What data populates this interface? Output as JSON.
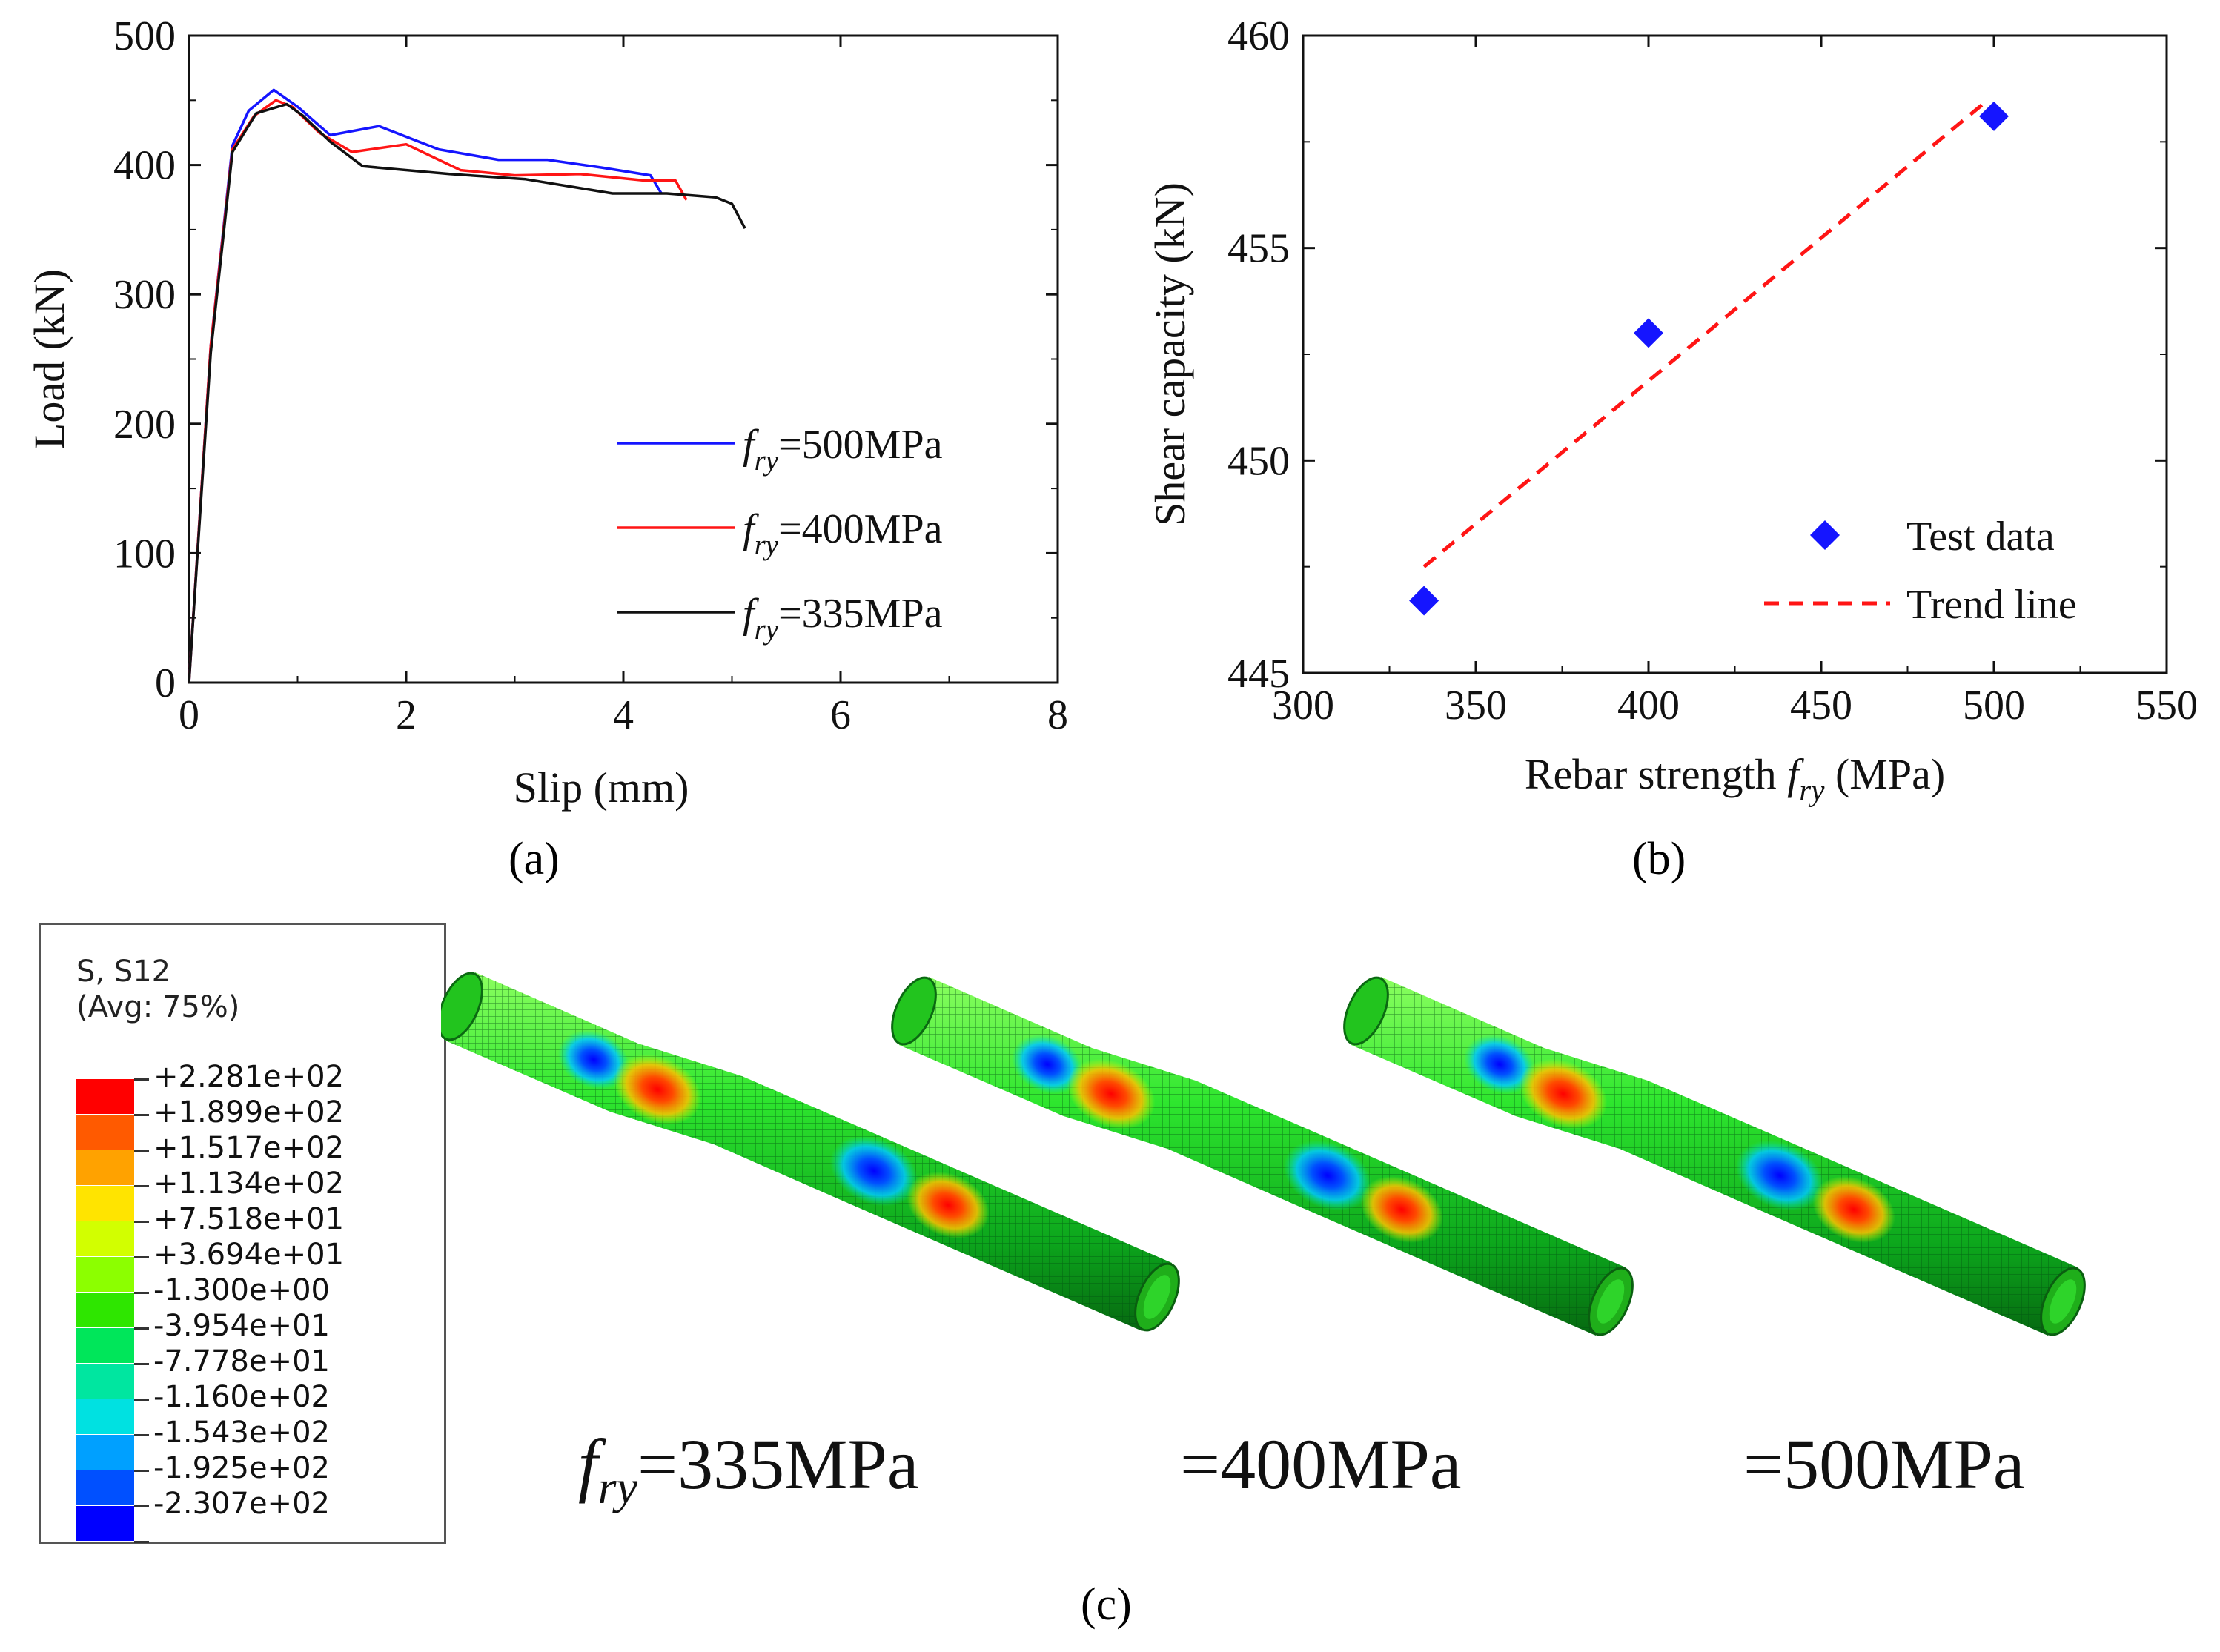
{
  "chart_data": [
    {
      "type": "line",
      "panel": "(a)",
      "xlabel": "Slip (mm)",
      "ylabel": "Load (kN)",
      "xlim": [
        0,
        8
      ],
      "ylim": [
        0,
        500
      ],
      "xticks": [
        0,
        2,
        4,
        6,
        8
      ],
      "yticks": [
        0,
        100,
        200,
        300,
        400,
        500
      ],
      "legend_position": "bottom-right",
      "series": [
        {
          "name_prefix": "f",
          "name_sub": "ry",
          "name_suffix": "=500MPa",
          "color": "#1515ff",
          "x": [
            0,
            0.2,
            0.4,
            0.55,
            0.78,
            1.0,
            1.3,
            1.75,
            2.3,
            2.85,
            3.3,
            3.8,
            4.25,
            4.35
          ],
          "y": [
            0,
            260,
            415,
            442,
            458,
            445,
            423,
            430,
            412,
            404,
            404,
            398,
            392,
            378
          ]
        },
        {
          "name_prefix": "f",
          "name_sub": "ry",
          "name_suffix": "=400MPa",
          "color": "#ff1515",
          "x": [
            0,
            0.2,
            0.4,
            0.6,
            0.8,
            0.95,
            1.2,
            1.5,
            2.0,
            2.5,
            3.0,
            3.6,
            4.2,
            4.48,
            4.58
          ],
          "y": [
            0,
            260,
            412,
            438,
            450,
            445,
            425,
            410,
            416,
            396,
            392,
            393,
            388,
            388,
            373
          ]
        },
        {
          "name_prefix": "f",
          "name_sub": "ry",
          "name_suffix": "=335MPa",
          "color": "#111111",
          "x": [
            0,
            0.2,
            0.4,
            0.62,
            0.9,
            1.05,
            1.3,
            1.6,
            2.4,
            3.1,
            3.9,
            4.4,
            4.85,
            5.0,
            5.12
          ],
          "y": [
            0,
            255,
            410,
            440,
            447,
            438,
            418,
            399,
            393,
            389,
            378,
            378,
            375,
            370,
            351
          ]
        }
      ]
    },
    {
      "type": "scatter",
      "panel": "(b)",
      "xlabel_prefix": "Rebar strength ",
      "xlabel_f": "f",
      "xlabel_sub": "ry",
      "xlabel_suffix": " (MPa)",
      "ylabel": "Shear capacity (kN)",
      "xlim": [
        300,
        550
      ],
      "ylim": [
        445,
        460
      ],
      "xticks": [
        300,
        350,
        400,
        450,
        500,
        550
      ],
      "yticks": [
        445,
        450,
        455,
        460
      ],
      "legend_position": "bottom-right",
      "series": [
        {
          "name": "Test data",
          "marker": "diamond",
          "color": "#1515ff",
          "x": [
            335,
            400,
            500
          ],
          "y": [
            446.7,
            453.0,
            458.1
          ]
        },
        {
          "name": "Trend line",
          "style": "dashed",
          "color": "#ff1515",
          "x": [
            335,
            497
          ],
          "y": [
            447.5,
            458.4
          ]
        }
      ]
    }
  ],
  "panel_labels": {
    "a": "(a)",
    "b": "(b)",
    "c": "(c)"
  },
  "legend": {
    "title1": "S, S12",
    "title2": "(Avg: 75%)",
    "colors": [
      "#ff0000",
      "#ff5a00",
      "#ffa200",
      "#ffe400",
      "#d2ff00",
      "#8cff00",
      "#2ee600",
      "#00e65a",
      "#00e6a0",
      "#00e1e1",
      "#00a0ff",
      "#0050ff",
      "#0000ff"
    ],
    "values": [
      "+2.281e+02",
      "+1.899e+02",
      "+1.517e+02",
      "+1.134e+02",
      "+7.518e+01",
      "+3.694e+01",
      "-1.300e+00",
      "-3.954e+01",
      "-7.778e+01",
      "-1.160e+02",
      "-1.543e+02",
      "-1.925e+02",
      "-2.307e+02"
    ]
  },
  "captions": {
    "f": "f",
    "sub": "ry",
    "cap335": "=335MPa",
    "cap400": "=400MPa",
    "cap500": "=500MPa"
  }
}
